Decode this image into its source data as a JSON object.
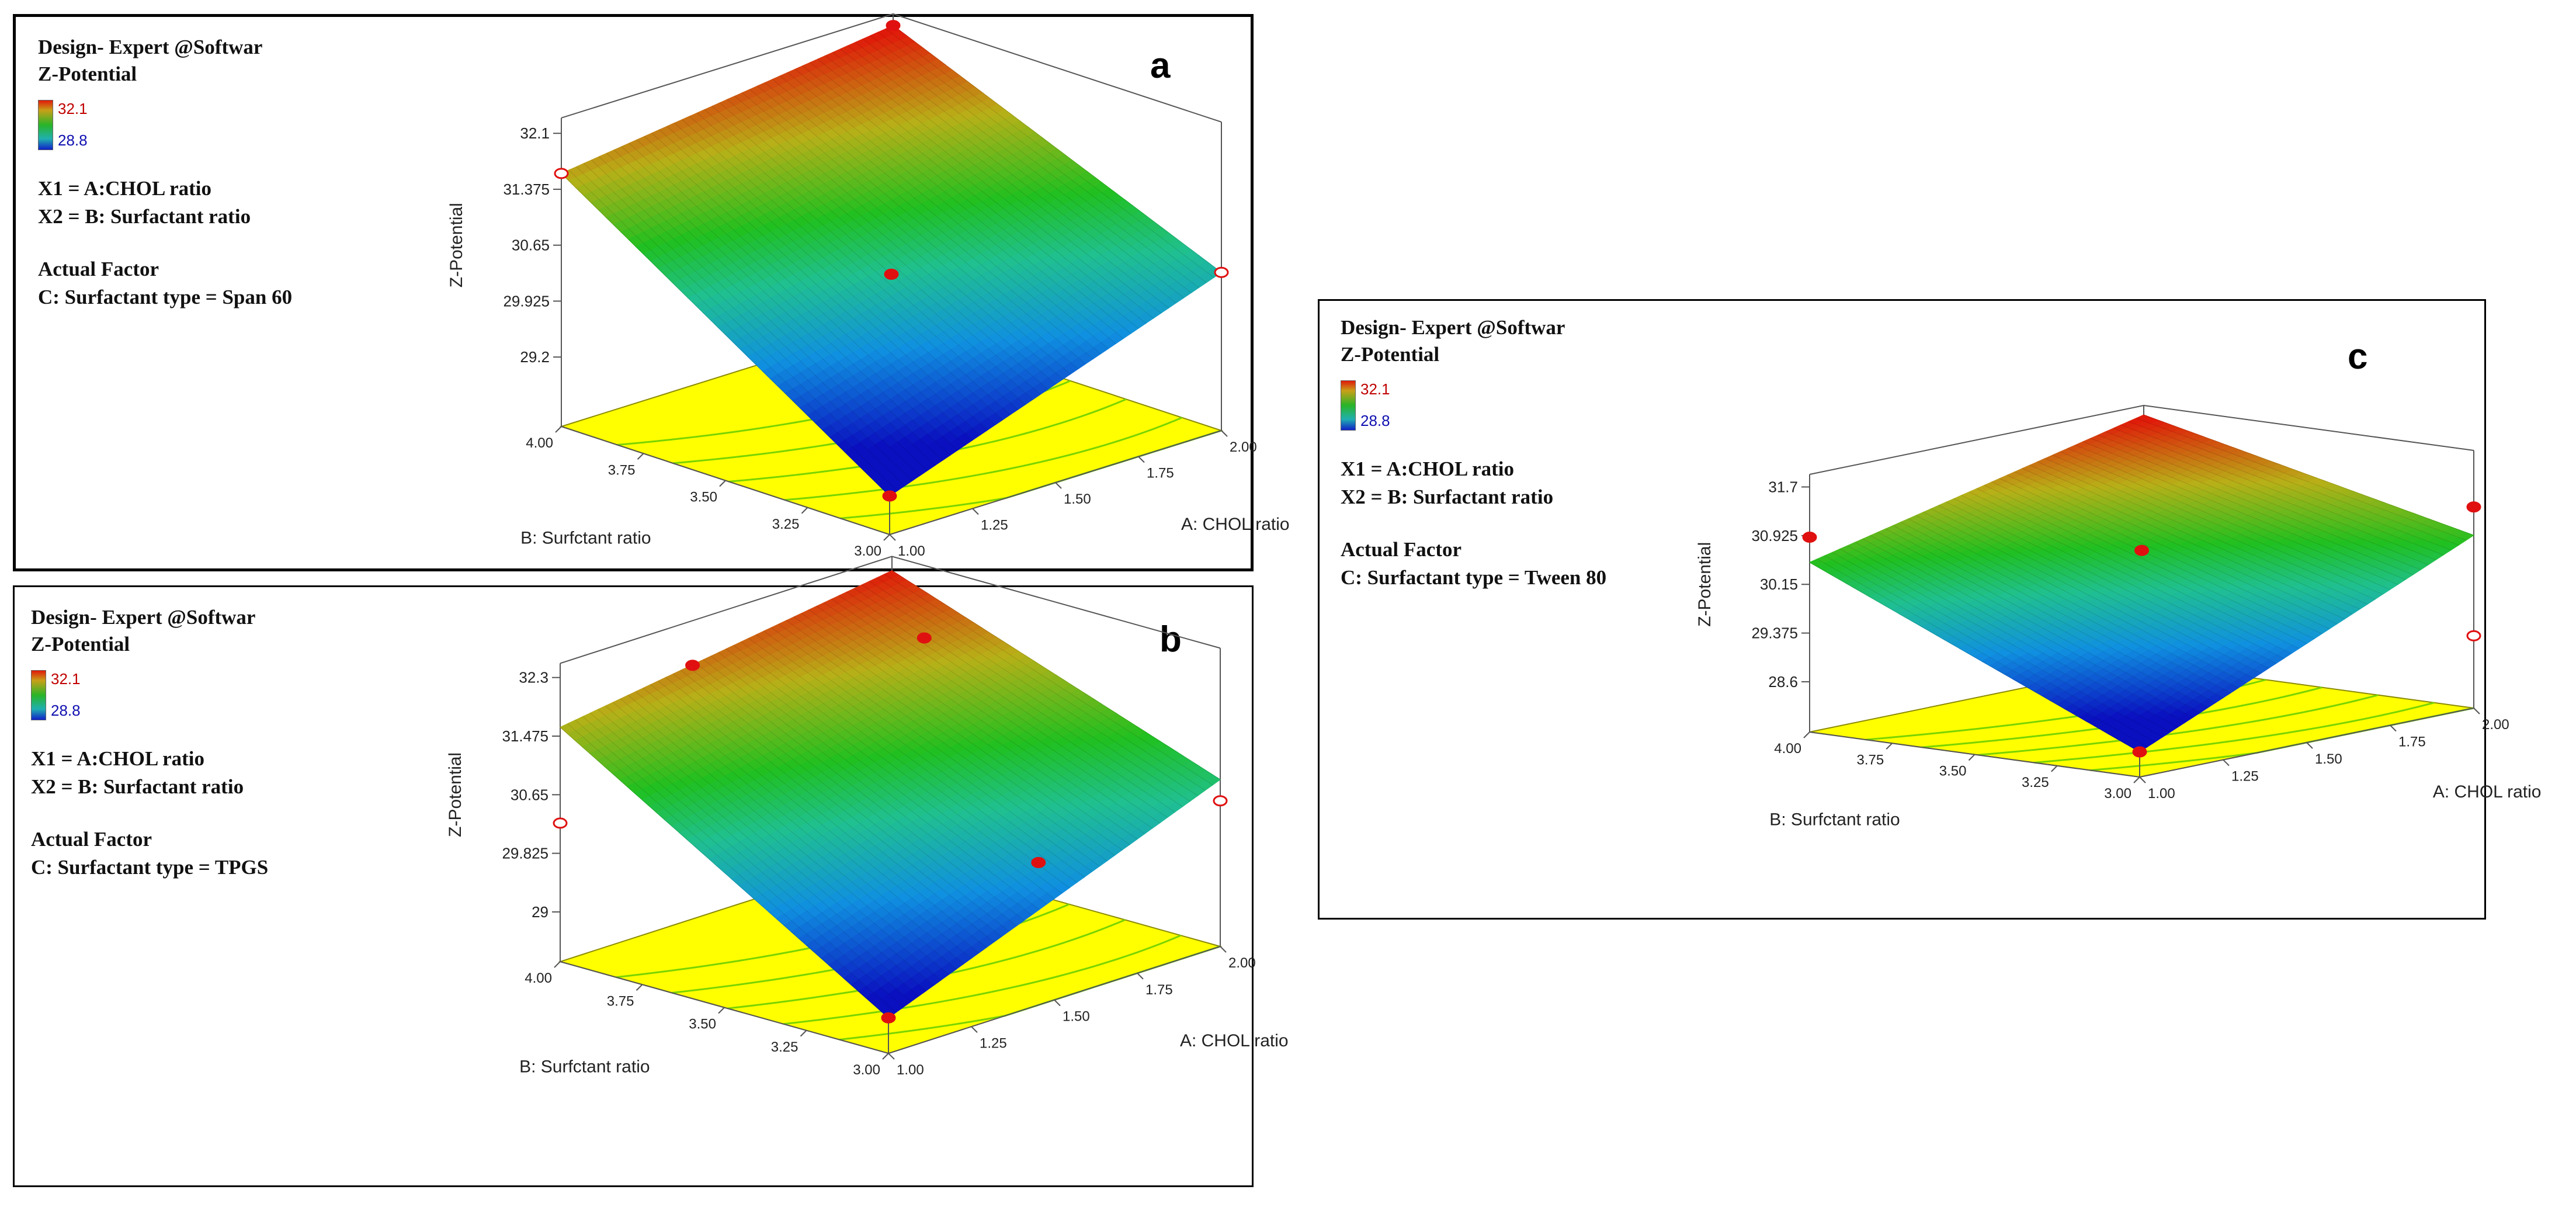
{
  "colors": {
    "border": "#000000",
    "floor": "#ffff00",
    "floor_edge": "#8a8a00",
    "contour": "#7ad400",
    "axis": "#555555",
    "point": "#e01010",
    "legend_max_text": "#c00000",
    "legend_min_text": "#1010b0",
    "surface_low": "#0a10c0",
    "surface_mid": "#20c020",
    "surface_high": "#e01a0a"
  },
  "chart_data": [
    {
      "type": "surface",
      "panel_label": "a",
      "software": "Design- Expert @Softwar",
      "response": "Z-Potential",
      "color_scale": {
        "max": "32.1",
        "min": "28.8"
      },
      "x1_label": "X1 = A:CHOL ratio",
      "x2_label": "X2 = B: Surfactant ratio",
      "actual_factor_heading": "Actual Factor",
      "actual_factor": "C: Surfactant type = Span 60",
      "zlabel": "Z-Potential",
      "xlabel": "A: CHOL ratio",
      "ylabel": "B: Surfctant ratio",
      "xlim": [
        1.0,
        2.0
      ],
      "ylim": [
        3.0,
        4.0
      ],
      "zlim": [
        28.3,
        32.3
      ],
      "z_ticks": [
        "32.1",
        "31.375",
        "30.65",
        "29.925",
        "29.2"
      ],
      "x_ticks": [
        "1.00",
        "1.25",
        "1.50",
        "1.75",
        "2.00"
      ],
      "y_ticks": [
        "3.00",
        "3.25",
        "3.50",
        "3.75",
        "4.00"
      ],
      "surface_corners": {
        "A1_B3": 28.8,
        "A2_B3": 30.35,
        "A1_B4": 31.58,
        "A2_B4": 32.15
      },
      "design_points": [
        {
          "A": 1.0,
          "B": 3.0,
          "z": 28.8,
          "filled": true
        },
        {
          "A": 2.0,
          "B": 4.0,
          "z": 32.15,
          "filled": true
        },
        {
          "A": 1.0,
          "B": 4.0,
          "z": 31.58,
          "filled": false
        },
        {
          "A": 2.0,
          "B": 3.0,
          "z": 30.35,
          "filled": false
        },
        {
          "A": 1.5,
          "B": 3.5,
          "z": 30.3,
          "filled": true
        }
      ]
    },
    {
      "type": "surface",
      "panel_label": "b",
      "software": "Design- Expert @Softwar",
      "response": "Z-Potential",
      "color_scale": {
        "max": "32.1",
        "min": "28.8"
      },
      "x1_label": "X1 = A:CHOL ratio",
      "x2_label": "X2 = B: Surfactant ratio",
      "actual_factor_heading": "Actual Factor",
      "actual_factor": "C: Surfactant type = TPGS",
      "zlabel": "Z-Potential",
      "xlabel": "A: CHOL ratio",
      "ylabel": "B: Surfctant ratio",
      "xlim": [
        1.0,
        2.0
      ],
      "ylim": [
        3.0,
        4.0
      ],
      "zlim": [
        28.3,
        32.5
      ],
      "z_ticks": [
        "32.3",
        "31.475",
        "30.65",
        "29.825",
        "29"
      ],
      "x_ticks": [
        "1.00",
        "1.25",
        "1.50",
        "1.75",
        "2.00"
      ],
      "y_ticks": [
        "3.00",
        "3.25",
        "3.50",
        "3.75",
        "4.00"
      ],
      "surface_corners": {
        "A1_B3": 28.8,
        "A2_B3": 30.65,
        "A1_B4": 31.6,
        "A2_B4": 32.3
      },
      "design_points": [
        {
          "A": 1.0,
          "B": 3.0,
          "z": 28.8,
          "filled": true
        },
        {
          "A": 1.3,
          "B": 3.9,
          "z": 32.15,
          "filled": true
        },
        {
          "A": 1.85,
          "B": 3.75,
          "z": 31.9,
          "filled": true
        },
        {
          "A": 1.0,
          "B": 4.0,
          "z": 30.25,
          "filled": false
        },
        {
          "A": 2.0,
          "B": 3.0,
          "z": 30.35,
          "filled": false
        },
        {
          "A": 1.65,
          "B": 3.2,
          "z": 29.75,
          "filled": true
        }
      ]
    },
    {
      "type": "surface",
      "panel_label": "c",
      "software": "Design- Expert @Softwar",
      "response": "Z-Potential",
      "color_scale": {
        "max": "32.1",
        "min": "28.8"
      },
      "x1_label": "X1 = A:CHOL ratio",
      "x2_label": "X2 = B: Surfactant ratio",
      "actual_factor_heading": "Actual Factor",
      "actual_factor": "C: Surfactant type =  Tween 80",
      "zlabel": "Z-Potential",
      "xlabel": "A: CHOL ratio",
      "ylabel": "B: Surfctant ratio",
      "xlim": [
        1.0,
        2.0
      ],
      "ylim": [
        3.0,
        4.0
      ],
      "zlim": [
        27.8,
        31.9
      ],
      "z_ticks": [
        "31.7",
        "30.925",
        "30.15",
        "29.375",
        "28.6"
      ],
      "x_ticks": [
        "1.00",
        "1.25",
        "1.50",
        "1.75",
        "2.00"
      ],
      "y_ticks": [
        "3.00",
        "3.25",
        "3.50",
        "3.75",
        "4.00"
      ],
      "surface_corners": {
        "A1_B3": 28.2,
        "A2_B3": 30.55,
        "A1_B4": 30.5,
        "A2_B4": 31.75
      },
      "design_points": [
        {
          "A": 1.0,
          "B": 3.0,
          "z": 28.2,
          "filled": true
        },
        {
          "A": 1.0,
          "B": 4.0,
          "z": 30.9,
          "filled": true
        },
        {
          "A": 2.0,
          "B": 3.0,
          "z": 31.0,
          "filled": true
        },
        {
          "A": 1.5,
          "B": 3.5,
          "z": 30.5,
          "filled": true
        },
        {
          "A": 2.0,
          "B": 3.0,
          "z": 28.95,
          "filled": false
        }
      ]
    }
  ]
}
